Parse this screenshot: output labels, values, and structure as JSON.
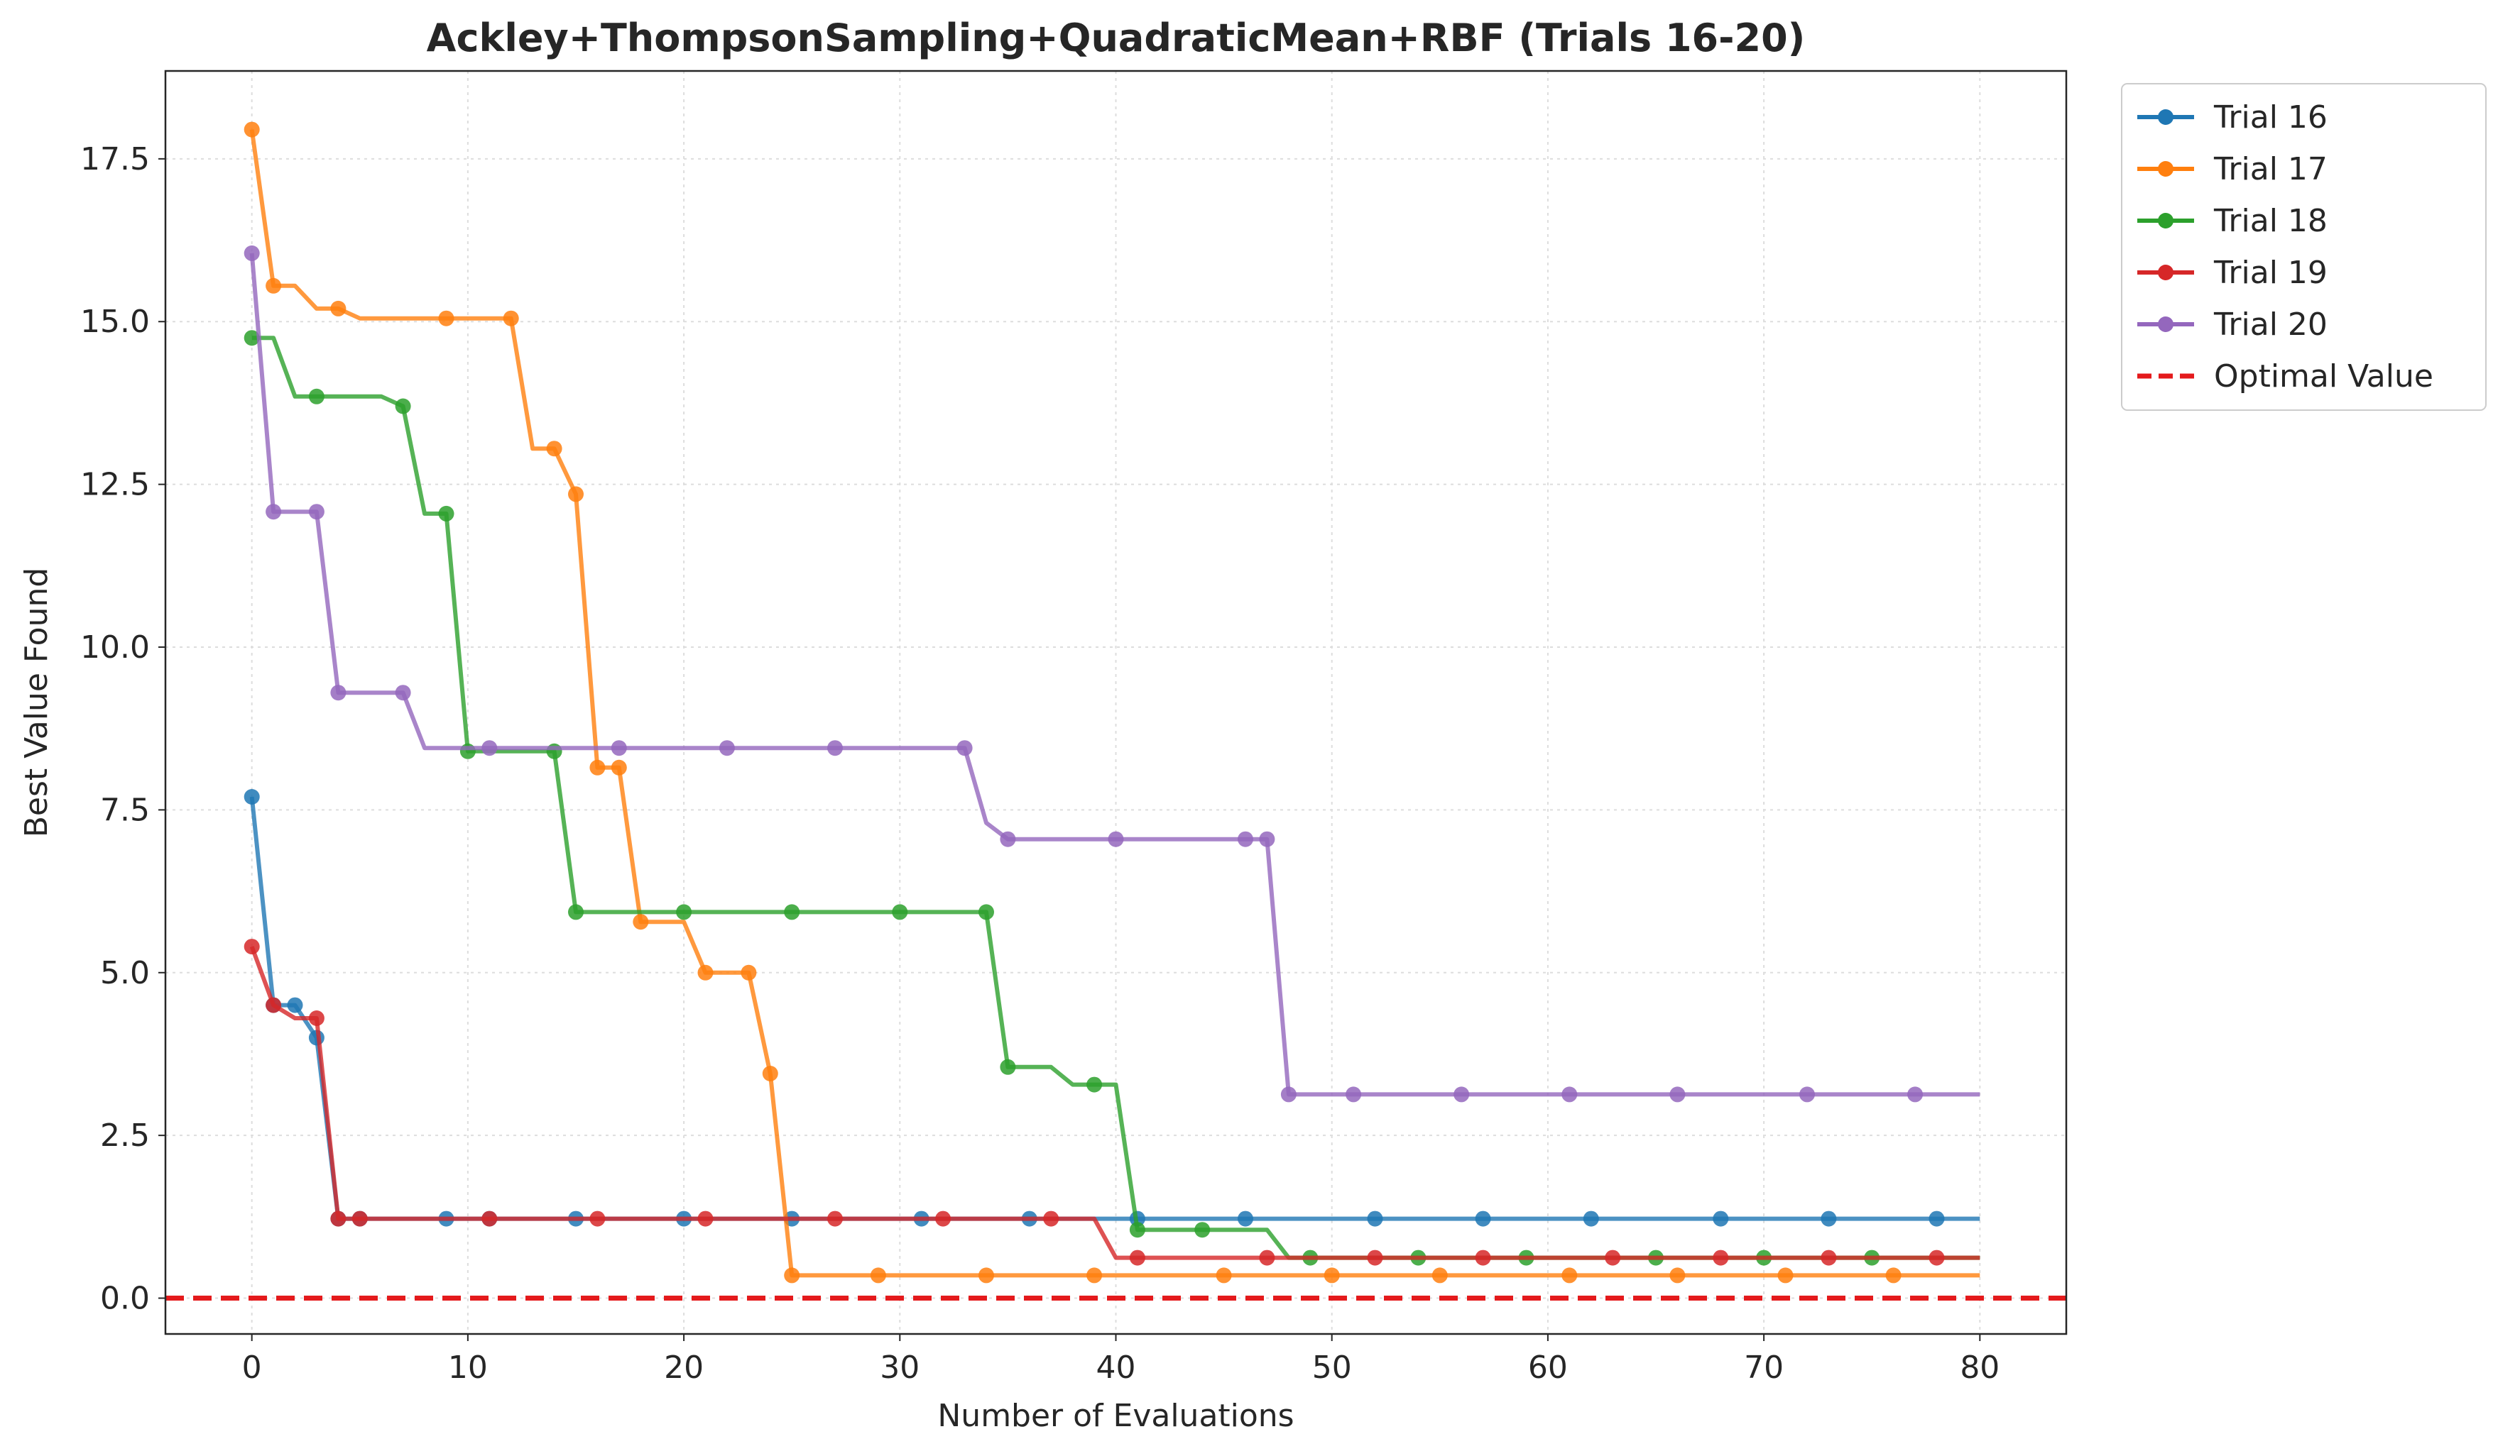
{
  "chart_data": {
    "type": "line",
    "title": "Ackley+ThompsonSampling+QuadraticMean+RBF (Trials 16-20)",
    "xlabel": "Number of Evaluations",
    "ylabel": "Best Value Found",
    "xlim": [
      -4,
      84
    ],
    "ylim": [
      -0.55,
      18.85
    ],
    "xticks": [
      0,
      10,
      20,
      30,
      40,
      50,
      60,
      70,
      80
    ],
    "yticks": [
      0.0,
      2.5,
      5.0,
      7.5,
      10.0,
      12.5,
      15.0,
      17.5
    ],
    "xtick_labels": [
      "0",
      "10",
      "20",
      "30",
      "40",
      "50",
      "60",
      "70",
      "80"
    ],
    "ytick_labels": [
      "0.0",
      "2.5",
      "5.0",
      "7.5",
      "10.0",
      "12.5",
      "15.0",
      "17.5"
    ],
    "grid": true,
    "legend_position": "outside top-right",
    "optimal_value": {
      "name": "Optimal Value",
      "value": 0.0,
      "color": "#e41a1c",
      "style": "dashed"
    },
    "series": [
      {
        "name": "Trial 16",
        "color": "#1f77b4",
        "line": [
          [
            0,
            7.7
          ],
          [
            1,
            4.5
          ],
          [
            2,
            4.5
          ],
          [
            3,
            4.0
          ],
          [
            4,
            1.22
          ],
          [
            80,
            1.22
          ]
        ],
        "markers": [
          [
            0,
            7.7
          ],
          [
            1,
            4.5
          ],
          [
            2,
            4.5
          ],
          [
            3,
            4.0
          ],
          [
            4,
            1.22
          ],
          [
            5,
            1.22
          ],
          [
            9,
            1.22
          ],
          [
            11,
            1.22
          ],
          [
            15,
            1.22
          ],
          [
            20,
            1.22
          ],
          [
            25,
            1.22
          ],
          [
            31,
            1.22
          ],
          [
            36,
            1.22
          ],
          [
            41,
            1.22
          ],
          [
            46,
            1.22
          ],
          [
            52,
            1.22
          ],
          [
            57,
            1.22
          ],
          [
            62,
            1.22
          ],
          [
            68,
            1.22
          ],
          [
            73,
            1.22
          ],
          [
            78,
            1.22
          ]
        ]
      },
      {
        "name": "Trial 17",
        "color": "#ff7f0e",
        "line": [
          [
            0,
            17.95
          ],
          [
            1,
            15.55
          ],
          [
            2,
            15.55
          ],
          [
            3,
            15.2
          ],
          [
            4,
            15.2
          ],
          [
            5,
            15.05
          ],
          [
            12,
            15.05
          ],
          [
            13,
            13.05
          ],
          [
            14,
            13.05
          ],
          [
            15,
            12.35
          ],
          [
            16,
            8.15
          ],
          [
            17,
            8.15
          ],
          [
            18,
            5.78
          ],
          [
            20,
            5.78
          ],
          [
            21,
            5.0
          ],
          [
            23,
            5.0
          ],
          [
            24,
            3.45
          ],
          [
            25,
            0.35
          ],
          [
            80,
            0.35
          ]
        ],
        "markers": [
          [
            0,
            17.95
          ],
          [
            1,
            15.55
          ],
          [
            4,
            15.2
          ],
          [
            9,
            15.05
          ],
          [
            12,
            15.05
          ],
          [
            14,
            13.05
          ],
          [
            15,
            12.35
          ],
          [
            16,
            8.15
          ],
          [
            17,
            8.15
          ],
          [
            18,
            5.78
          ],
          [
            21,
            5.0
          ],
          [
            23,
            5.0
          ],
          [
            24,
            3.45
          ],
          [
            25,
            0.35
          ],
          [
            29,
            0.35
          ],
          [
            34,
            0.35
          ],
          [
            39,
            0.35
          ],
          [
            45,
            0.35
          ],
          [
            50,
            0.35
          ],
          [
            55,
            0.35
          ],
          [
            61,
            0.35
          ],
          [
            66,
            0.35
          ],
          [
            71,
            0.35
          ],
          [
            76,
            0.35
          ]
        ]
      },
      {
        "name": "Trial 18",
        "color": "#2ca02c",
        "line": [
          [
            0,
            14.75
          ],
          [
            1,
            14.75
          ],
          [
            2,
            13.85
          ],
          [
            6,
            13.85
          ],
          [
            7,
            13.7
          ],
          [
            8,
            12.05
          ],
          [
            9,
            12.05
          ],
          [
            10,
            8.4
          ],
          [
            14,
            8.4
          ],
          [
            15,
            5.93
          ],
          [
            34,
            5.93
          ],
          [
            35,
            3.55
          ],
          [
            37,
            3.55
          ],
          [
            38,
            3.28
          ],
          [
            40,
            3.28
          ],
          [
            41,
            1.05
          ],
          [
            47,
            1.05
          ],
          [
            48,
            0.62
          ],
          [
            80,
            0.62
          ]
        ],
        "markers": [
          [
            0,
            14.75
          ],
          [
            3,
            13.85
          ],
          [
            7,
            13.7
          ],
          [
            9,
            12.05
          ],
          [
            10,
            8.4
          ],
          [
            14,
            8.4
          ],
          [
            15,
            5.93
          ],
          [
            20,
            5.93
          ],
          [
            25,
            5.93
          ],
          [
            30,
            5.93
          ],
          [
            34,
            5.93
          ],
          [
            35,
            3.55
          ],
          [
            39,
            3.28
          ],
          [
            41,
            1.05
          ],
          [
            44,
            1.05
          ],
          [
            49,
            0.62
          ],
          [
            54,
            0.62
          ],
          [
            59,
            0.62
          ],
          [
            65,
            0.62
          ],
          [
            70,
            0.62
          ],
          [
            75,
            0.62
          ]
        ]
      },
      {
        "name": "Trial 19",
        "color": "#d62728",
        "line": [
          [
            0,
            5.4
          ],
          [
            1,
            4.5
          ],
          [
            2,
            4.3
          ],
          [
            3,
            4.3
          ],
          [
            4,
            1.22
          ],
          [
            39,
            1.22
          ],
          [
            40,
            0.62
          ],
          [
            80,
            0.62
          ]
        ],
        "markers": [
          [
            0,
            5.4
          ],
          [
            1,
            4.5
          ],
          [
            3,
            4.3
          ],
          [
            4,
            1.22
          ],
          [
            5,
            1.22
          ],
          [
            11,
            1.22
          ],
          [
            16,
            1.22
          ],
          [
            21,
            1.22
          ],
          [
            27,
            1.22
          ],
          [
            32,
            1.22
          ],
          [
            37,
            1.22
          ],
          [
            41,
            0.62
          ],
          [
            47,
            0.62
          ],
          [
            52,
            0.62
          ],
          [
            57,
            0.62
          ],
          [
            63,
            0.62
          ],
          [
            68,
            0.62
          ],
          [
            73,
            0.62
          ],
          [
            78,
            0.62
          ]
        ]
      },
      {
        "name": "Trial 20",
        "color": "#9467bd",
        "line": [
          [
            0,
            16.05
          ],
          [
            1,
            12.08
          ],
          [
            3,
            12.08
          ],
          [
            4,
            9.3
          ],
          [
            7,
            9.3
          ],
          [
            8,
            8.45
          ],
          [
            33,
            8.45
          ],
          [
            34,
            7.3
          ],
          [
            35,
            7.05
          ],
          [
            47,
            7.05
          ],
          [
            48,
            3.13
          ],
          [
            80,
            3.13
          ]
        ],
        "markers": [
          [
            0,
            16.05
          ],
          [
            1,
            12.08
          ],
          [
            3,
            12.08
          ],
          [
            4,
            9.3
          ],
          [
            7,
            9.3
          ],
          [
            11,
            8.45
          ],
          [
            17,
            8.45
          ],
          [
            22,
            8.45
          ],
          [
            27,
            8.45
          ],
          [
            33,
            8.45
          ],
          [
            35,
            7.05
          ],
          [
            40,
            7.05
          ],
          [
            46,
            7.05
          ],
          [
            47,
            7.05
          ],
          [
            48,
            3.13
          ],
          [
            51,
            3.13
          ],
          [
            56,
            3.13
          ],
          [
            61,
            3.13
          ],
          [
            66,
            3.13
          ],
          [
            72,
            3.13
          ],
          [
            77,
            3.13
          ]
        ]
      }
    ]
  }
}
